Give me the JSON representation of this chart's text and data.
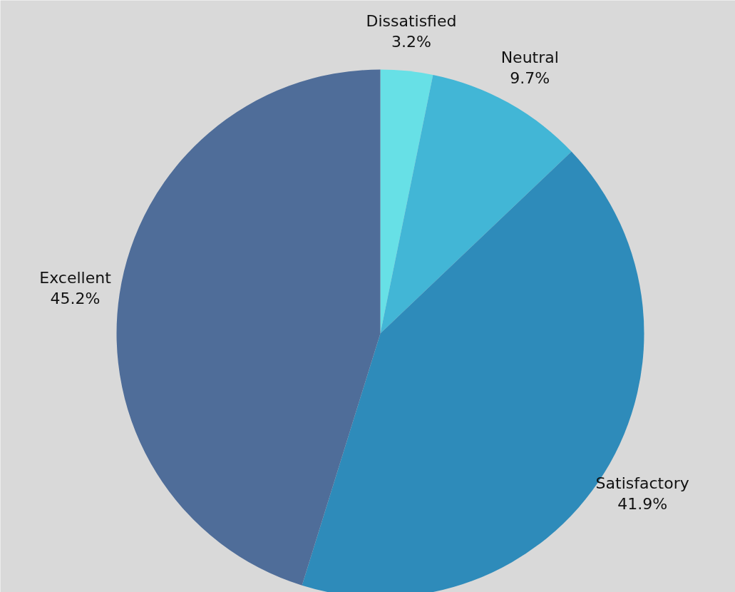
{
  "chart_data": {
    "type": "pie",
    "categories": [
      "Dissatisfied",
      "Neutral",
      "Satisfactory",
      "Excellent"
    ],
    "values": [
      3.2,
      9.7,
      41.9,
      45.2
    ],
    "colors": [
      "#67e0e6",
      "#42b6d6",
      "#2e8bba",
      "#4f6d99"
    ],
    "value_labels": [
      "3.2%",
      "9.7%",
      "41.9%",
      "45.2%"
    ]
  }
}
